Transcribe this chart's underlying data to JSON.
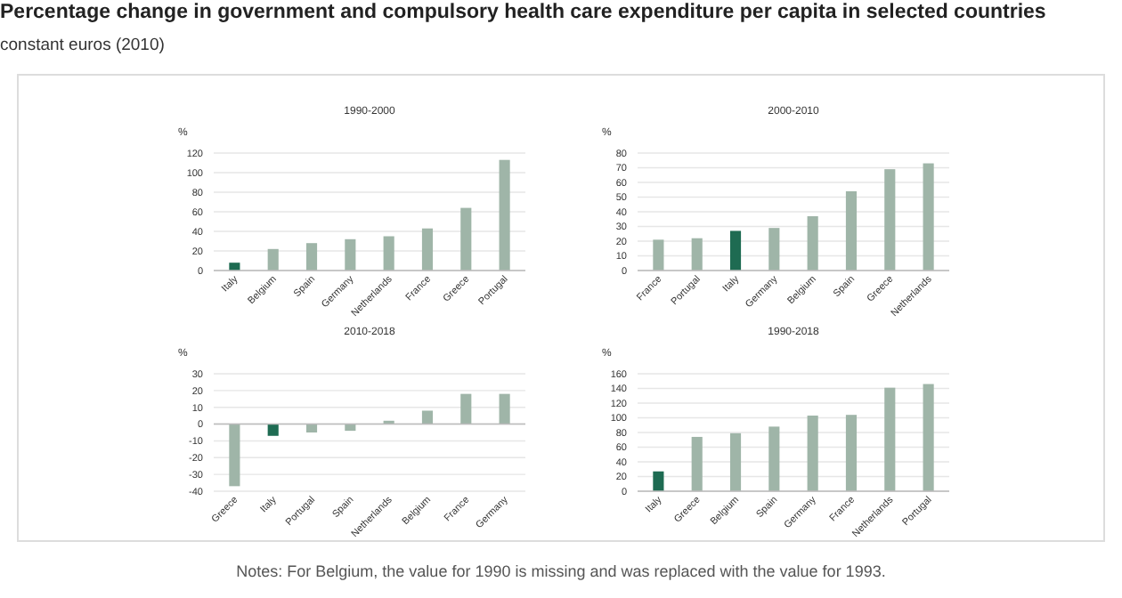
{
  "chart_data": [
    {
      "type": "other",
      "title": "Percentage change in government and compulsory health care expenditure per capita in selected countries",
      "subtitle": "constant euros (2010)",
      "annotations": [
        "Notes: For Belgium, the value for 1990 is missing and was replaced with the value for 1993."
      ]
    },
    {
      "type": "bar",
      "title": "1990-2000",
      "ylabel": "%",
      "categories": [
        "Italy",
        "Belgium",
        "Spain",
        "Germany",
        "Netherlands",
        "France",
        "Greece",
        "Portugal"
      ],
      "values": [
        8,
        22,
        28,
        32,
        35,
        43,
        64,
        113
      ],
      "colors": [
        "#1e6b52",
        "#9fb5a8",
        "#9fb5a8",
        "#9fb5a8",
        "#9fb5a8",
        "#9fb5a8",
        "#9fb5a8",
        "#9fb5a8"
      ],
      "ylim": [
        0,
        120
      ],
      "yticks": [
        0,
        20,
        40,
        60,
        80,
        100,
        120
      ],
      "grid": "y"
    },
    {
      "type": "bar",
      "title": "2000-2010",
      "ylabel": "%",
      "categories": [
        "France",
        "Portugal",
        "Italy",
        "Germany",
        "Belgium",
        "Spain",
        "Greece",
        "Netherlands"
      ],
      "values": [
        21,
        22,
        27,
        29,
        37,
        54,
        69,
        73
      ],
      "colors": [
        "#9fb5a8",
        "#9fb5a8",
        "#1e6b52",
        "#9fb5a8",
        "#9fb5a8",
        "#9fb5a8",
        "#9fb5a8",
        "#9fb5a8"
      ],
      "ylim": [
        0,
        80
      ],
      "yticks": [
        0,
        10,
        20,
        30,
        40,
        50,
        60,
        70,
        80
      ],
      "grid": "y"
    },
    {
      "type": "bar",
      "title": "2010-2018",
      "ylabel": "%",
      "categories": [
        "Greece",
        "Italy",
        "Portugal",
        "Spain",
        "Netherlands",
        "Belgium",
        "France",
        "Germany"
      ],
      "values": [
        -37,
        -7,
        -5,
        -4,
        2,
        8,
        18,
        18
      ],
      "colors": [
        "#9fb5a8",
        "#1e6b52",
        "#9fb5a8",
        "#9fb5a8",
        "#9fb5a8",
        "#9fb5a8",
        "#9fb5a8",
        "#9fb5a8"
      ],
      "ylim": [
        -40,
        30
      ],
      "yticks": [
        -40,
        -30,
        -20,
        -10,
        0,
        10,
        20,
        30
      ],
      "grid": "y"
    },
    {
      "type": "bar",
      "title": "1990-2018",
      "ylabel": "%",
      "categories": [
        "Italy",
        "Greece",
        "Belgium",
        "Spain",
        "Germany",
        "France",
        "Netherlands",
        "Portugal"
      ],
      "values": [
        27,
        74,
        79,
        88,
        103,
        104,
        141,
        146
      ],
      "colors": [
        "#1e6b52",
        "#9fb5a8",
        "#9fb5a8",
        "#9fb5a8",
        "#9fb5a8",
        "#9fb5a8",
        "#9fb5a8",
        "#9fb5a8"
      ],
      "ylim": [
        0,
        160
      ],
      "yticks": [
        0,
        20,
        40,
        60,
        80,
        100,
        120,
        140,
        160
      ],
      "grid": "y"
    }
  ]
}
